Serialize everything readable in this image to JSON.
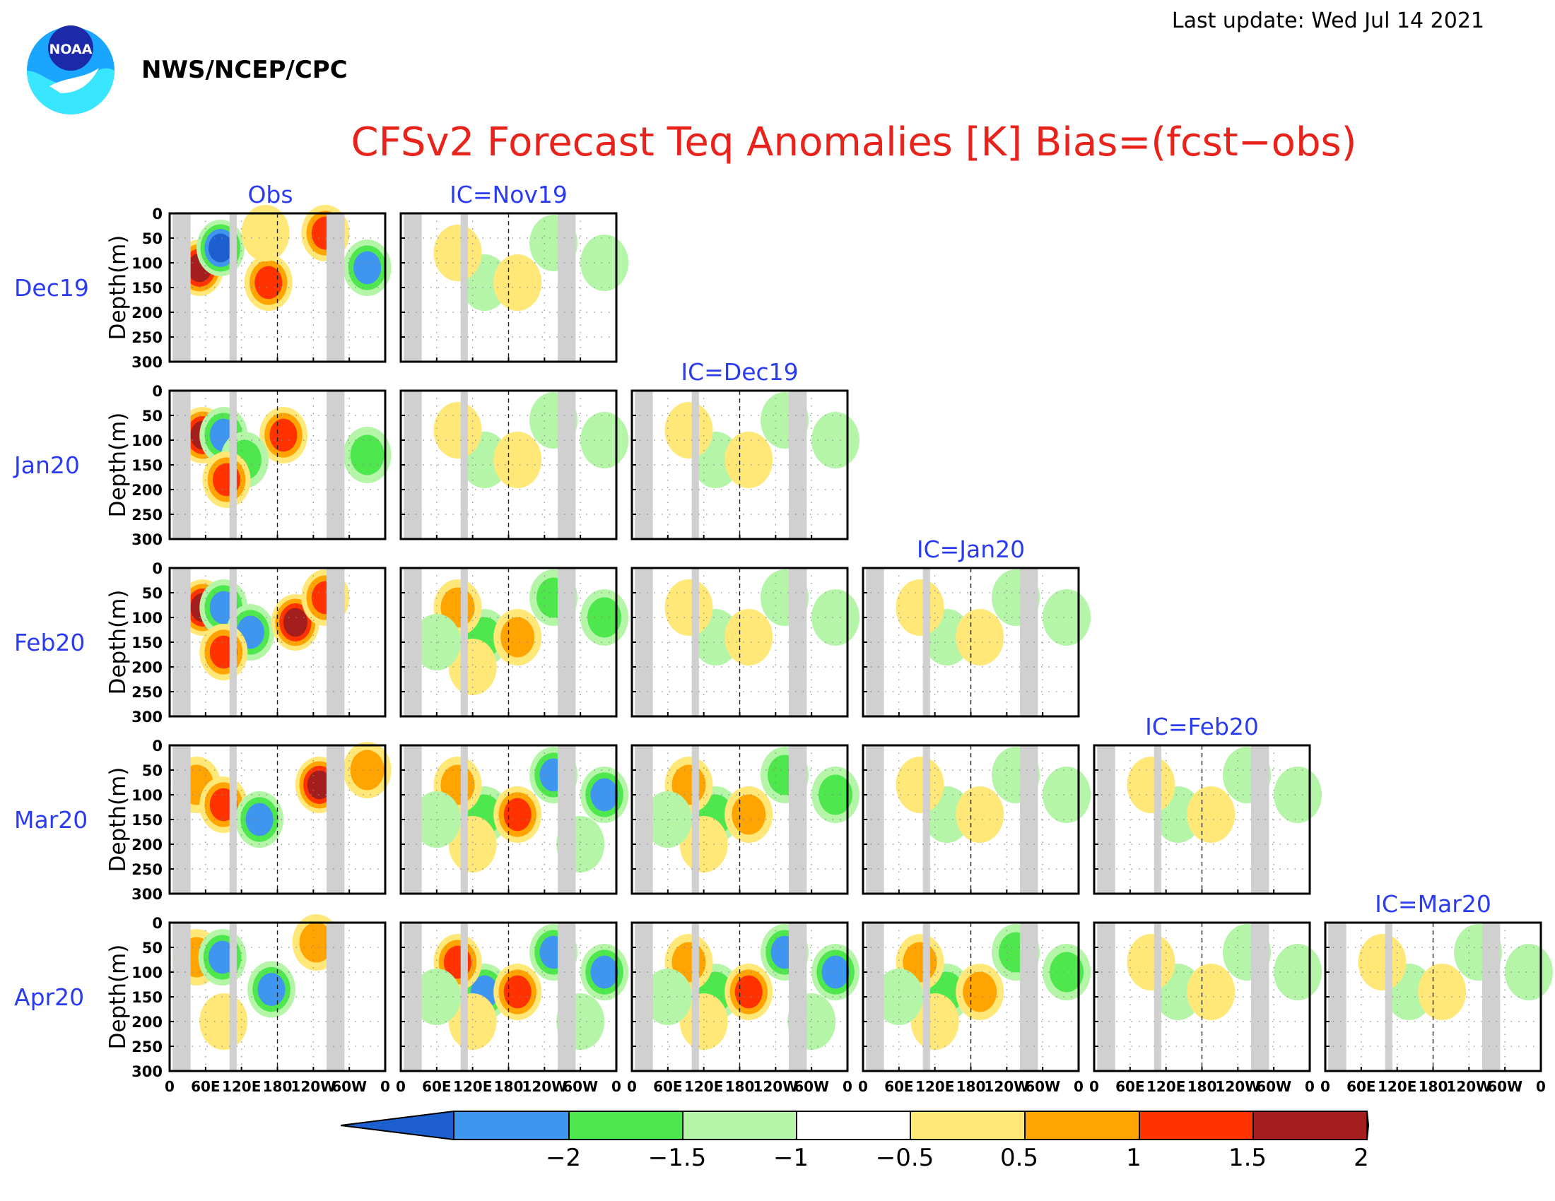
{
  "header": {
    "last_update": "Last update: Wed Jul 14 2021",
    "agency": "NWS/NCEP/CPC",
    "logo_text": "NOAA"
  },
  "title": "CFSv2 Forecast Teq Anomalies [K] Bias=(fcst−obs)",
  "colors": {
    "title": "#e8231b",
    "label": "#2b3cf0",
    "gray_band": "#d0d0d0",
    "frame": "#000000",
    "bins": [
      "#1e5fd0",
      "#3e96f0",
      "#4ee84e",
      "#b4f5a8",
      "#ffffff",
      "#ffe878",
      "#ffa400",
      "#ff3200",
      "#a41e1e"
    ]
  },
  "chart_data": {
    "type": "heatmap",
    "variable": "Teq anomalies [K], equatorial depth–longitude sections",
    "column_labels": [
      "Obs",
      "IC=Nov19",
      "IC=Dec19",
      "IC=Jan20",
      "IC=Feb20",
      "IC=Mar20"
    ],
    "row_labels": [
      "Dec19",
      "Jan20",
      "Feb20",
      "Mar20",
      "Apr20"
    ],
    "panels_in_row": [
      2,
      3,
      4,
      5,
      6
    ],
    "ylabel": "Depth(m)",
    "y_ticks": [
      "0",
      "50",
      "100",
      "150",
      "200",
      "250",
      "300"
    ],
    "ylim": [
      300,
      0
    ],
    "x_ticks": [
      "0",
      "60E",
      "120E",
      "180",
      "120W",
      "60W",
      "0"
    ],
    "xlim_deg_east": [
      0,
      360
    ],
    "dashed_meridian_deg_east": 180,
    "land_bands_deg_east": [
      [
        5,
        35
      ],
      [
        100,
        112
      ],
      [
        262,
        292
      ]
    ],
    "colorbar": {
      "levels": [
        -2,
        -1.5,
        -1,
        -0.5,
        0.5,
        1,
        1.5,
        2
      ],
      "tick_labels": [
        "−2",
        "−1.5",
        "−1",
        "−0.5",
        "0.5",
        "1",
        "1.5",
        "2"
      ],
      "extend": "both"
    },
    "obs_blobs": [
      {
        "row": 0,
        "lon": 50,
        "depth": 110,
        "v": 2.3
      },
      {
        "row": 0,
        "lon": 85,
        "depth": 70,
        "v": -2.1
      },
      {
        "row": 0,
        "lon": 165,
        "depth": 140,
        "v": 1.9
      },
      {
        "row": 0,
        "lon": 260,
        "depth": 40,
        "v": 1.6
      },
      {
        "row": 0,
        "lon": 330,
        "depth": 110,
        "v": -1.8
      },
      {
        "row": 0,
        "lon": 160,
        "depth": 40,
        "v": 0.8
      },
      {
        "row": 1,
        "lon": 55,
        "depth": 90,
        "v": 2.2
      },
      {
        "row": 1,
        "lon": 90,
        "depth": 90,
        "v": -1.8
      },
      {
        "row": 1,
        "lon": 190,
        "depth": 90,
        "v": 1.8
      },
      {
        "row": 1,
        "lon": 125,
        "depth": 140,
        "v": -1.2
      },
      {
        "row": 1,
        "lon": 95,
        "depth": 180,
        "v": 1.8
      },
      {
        "row": 1,
        "lon": 330,
        "depth": 130,
        "v": -1.1
      },
      {
        "row": 2,
        "lon": 55,
        "depth": 80,
        "v": 2.0
      },
      {
        "row": 2,
        "lon": 90,
        "depth": 80,
        "v": -1.7
      },
      {
        "row": 2,
        "lon": 135,
        "depth": 130,
        "v": -1.7
      },
      {
        "row": 2,
        "lon": 210,
        "depth": 110,
        "v": 2.1
      },
      {
        "row": 2,
        "lon": 260,
        "depth": 60,
        "v": 1.9
      },
      {
        "row": 2,
        "lon": 90,
        "depth": 170,
        "v": 1.9
      },
      {
        "row": 3,
        "lon": 45,
        "depth": 80,
        "v": 1.3
      },
      {
        "row": 3,
        "lon": 90,
        "depth": 120,
        "v": 1.8
      },
      {
        "row": 3,
        "lon": 150,
        "depth": 150,
        "v": -1.7
      },
      {
        "row": 3,
        "lon": 250,
        "depth": 80,
        "v": 2.1
      },
      {
        "row": 3,
        "lon": 330,
        "depth": 50,
        "v": 1.2
      },
      {
        "row": 4,
        "lon": 45,
        "depth": 70,
        "v": 1.2
      },
      {
        "row": 4,
        "lon": 88,
        "depth": 70,
        "v": -1.6
      },
      {
        "row": 4,
        "lon": 170,
        "depth": 135,
        "v": -1.8
      },
      {
        "row": 4,
        "lon": 245,
        "depth": 40,
        "v": 1.3
      },
      {
        "row": 4,
        "lon": 90,
        "depth": 200,
        "v": 0.9
      }
    ],
    "forecast_blobs": [
      {
        "lon": 140,
        "depth": 140,
        "v": -1.6
      },
      {
        "lon": 255,
        "depth": 60,
        "v": -1.9
      },
      {
        "lon": 340,
        "depth": 100,
        "v": -1.9
      },
      {
        "lon": 95,
        "depth": 80,
        "v": 1.6
      },
      {
        "lon": 195,
        "depth": 140,
        "v": 1.9
      },
      {
        "lon": 120,
        "depth": 200,
        "v": 0.9
      },
      {
        "lon": 60,
        "depth": 150,
        "v": -0.8
      },
      {
        "lon": 300,
        "depth": 200,
        "v": -0.7
      }
    ]
  }
}
